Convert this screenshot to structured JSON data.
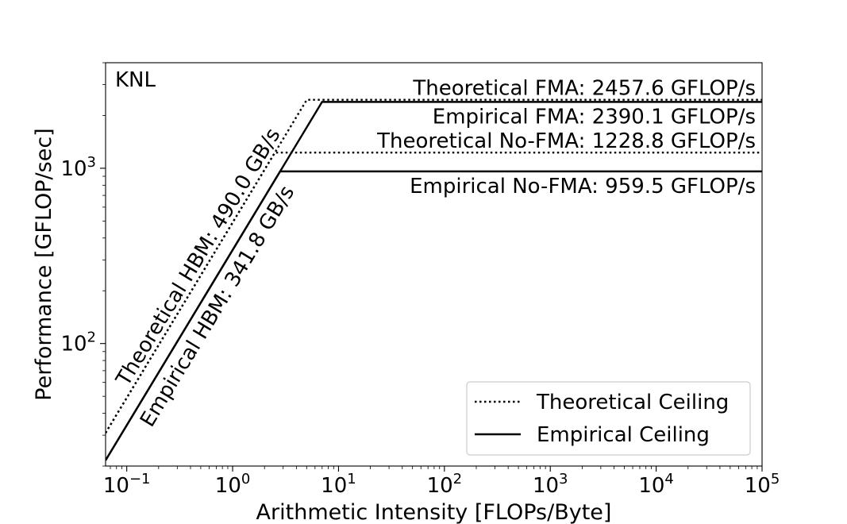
{
  "chart_data": {
    "type": "line",
    "title": "",
    "panel_label": "KNL",
    "xlabel": "Arithmetic Intensity [FLOPs/Byte]",
    "ylabel": "Performance [GFLOP/sec]",
    "xscale": "log",
    "yscale": "log",
    "xlim": [
      0.0631,
      100000
    ],
    "ylim": [
      20,
      4000
    ],
    "grid": false,
    "legend_position": "lower-right",
    "x_ticks": [
      {
        "base": "10",
        "exp": "−1"
      },
      {
        "base": "10",
        "exp": "0"
      },
      {
        "base": "10",
        "exp": "1"
      },
      {
        "base": "10",
        "exp": "2"
      },
      {
        "base": "10",
        "exp": "3"
      },
      {
        "base": "10",
        "exp": "4"
      },
      {
        "base": "10",
        "exp": "5"
      }
    ],
    "y_ticks": [
      {
        "base": "10",
        "exp": "2"
      },
      {
        "base": "10",
        "exp": "3"
      }
    ],
    "legend": [
      {
        "label": "Theoretical Ceiling",
        "style": "dotted"
      },
      {
        "label": "Empirical Ceiling",
        "style": "solid"
      }
    ],
    "bandwidth_ceilings": [
      {
        "label": "Theoretical HBM: 490.0 GB/s",
        "bandwidth_gbs": 490.0,
        "style": "dotted"
      },
      {
        "label": "Empirical HBM: 341.8 GB/s",
        "bandwidth_gbs": 341.8,
        "style": "solid"
      }
    ],
    "compute_ceilings": [
      {
        "label": "Theoretical FMA: 2457.6 GFLOP/s",
        "gflops": 2457.6,
        "style": "dotted",
        "label_pos": "above"
      },
      {
        "label": "Empirical FMA: 2390.1 GFLOP/s",
        "gflops": 2390.1,
        "style": "solid",
        "label_pos": "below"
      },
      {
        "label": "Theoretical No-FMA: 1228.8 GFLOP/s",
        "gflops": 1228.8,
        "style": "dotted",
        "label_pos": "above"
      },
      {
        "label": "Empirical No-FMA: 959.5 GFLOP/s",
        "gflops": 959.5,
        "style": "solid",
        "label_pos": "below"
      }
    ]
  }
}
